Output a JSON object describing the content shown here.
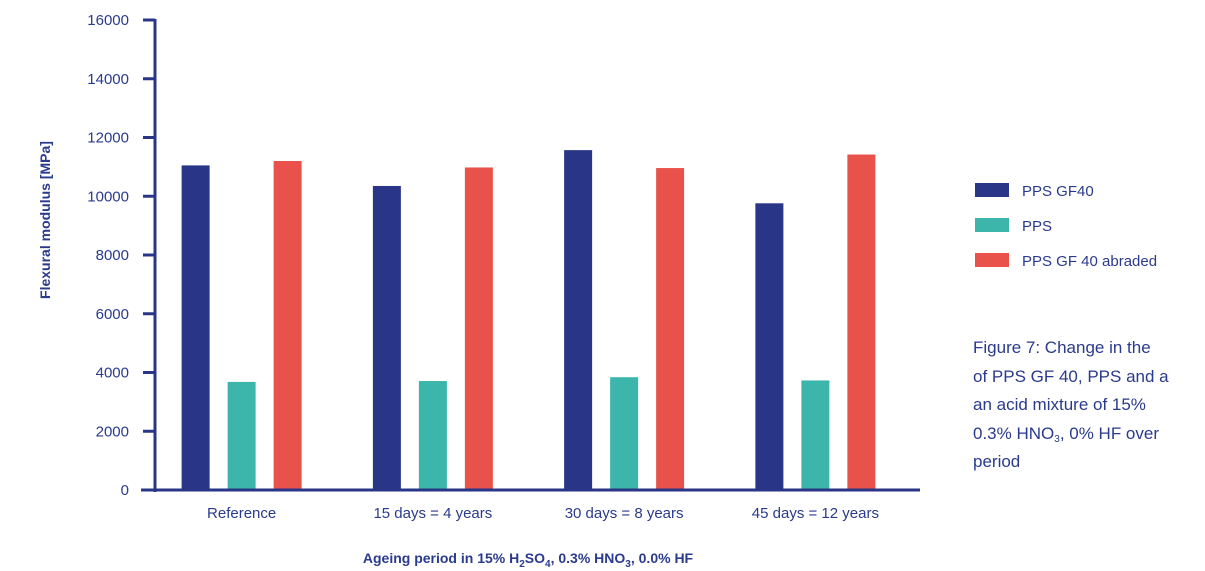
{
  "chart_data": {
    "type": "bar",
    "categories": [
      "Reference",
      "15 days = 4 years",
      "30 days = 8 years",
      "45 days = 12 years"
    ],
    "series": [
      {
        "name": "PPS GF40",
        "color": "#293586",
        "values": [
          11050,
          10350,
          11570,
          9760
        ]
      },
      {
        "name": "PPS",
        "color": "#3cb6aa",
        "values": [
          3680,
          3710,
          3840,
          3730
        ]
      },
      {
        "name": "PPS GF 40 abraded",
        "color": "#e8524a",
        "values": [
          11200,
          10980,
          10960,
          11420
        ]
      }
    ],
    "ylabel": "Flexural modulus [MPa]",
    "xlabel": {
      "p1": "Ageing period in 15% H",
      "s1": "2",
      "p2": "SO",
      "s2": "4",
      "p3": ", 0.3% HNO",
      "s3": "3",
      "p4": ", 0.0% HF"
    },
    "ylim": [
      0,
      16000
    ],
    "yticks": [
      0,
      2000,
      4000,
      6000,
      8000,
      10000,
      12000,
      14000,
      16000
    ],
    "axis_color": "#293586",
    "grid": false,
    "legend_position": "right"
  },
  "caption": {
    "line1": "Figure 7: Change in the",
    "line2": "of PPS GF 40, PPS and a",
    "line3": "an acid mixture of 15%",
    "line4_a": "0.3% HNO",
    "line4_sub": "3",
    "line4_b": ", 0% HF over",
    "line5": "period"
  }
}
